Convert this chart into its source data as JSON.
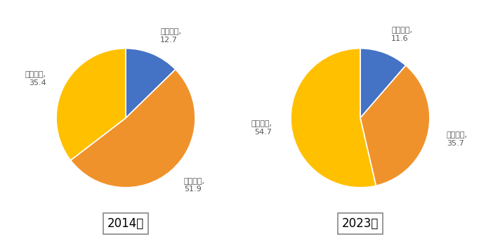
{
  "chart1": {
    "year": "2014年",
    "labels": [
      "第一产业",
      "第二产业",
      "第三产业"
    ],
    "values": [
      12.7,
      51.9,
      35.4
    ],
    "colors": [
      "#4472c4",
      "#f0922b",
      "#ffc000"
    ]
  },
  "chart2": {
    "year": "2023年",
    "labels": [
      "第一产业",
      "第二产业",
      "第三产业"
    ],
    "values": [
      11.6,
      35.7,
      54.7
    ],
    "colors": [
      "#4472c4",
      "#f0922b",
      "#ffc000"
    ]
  },
  "background_color": "#ffffff",
  "label_fontsize": 8,
  "year_fontsize": 12
}
